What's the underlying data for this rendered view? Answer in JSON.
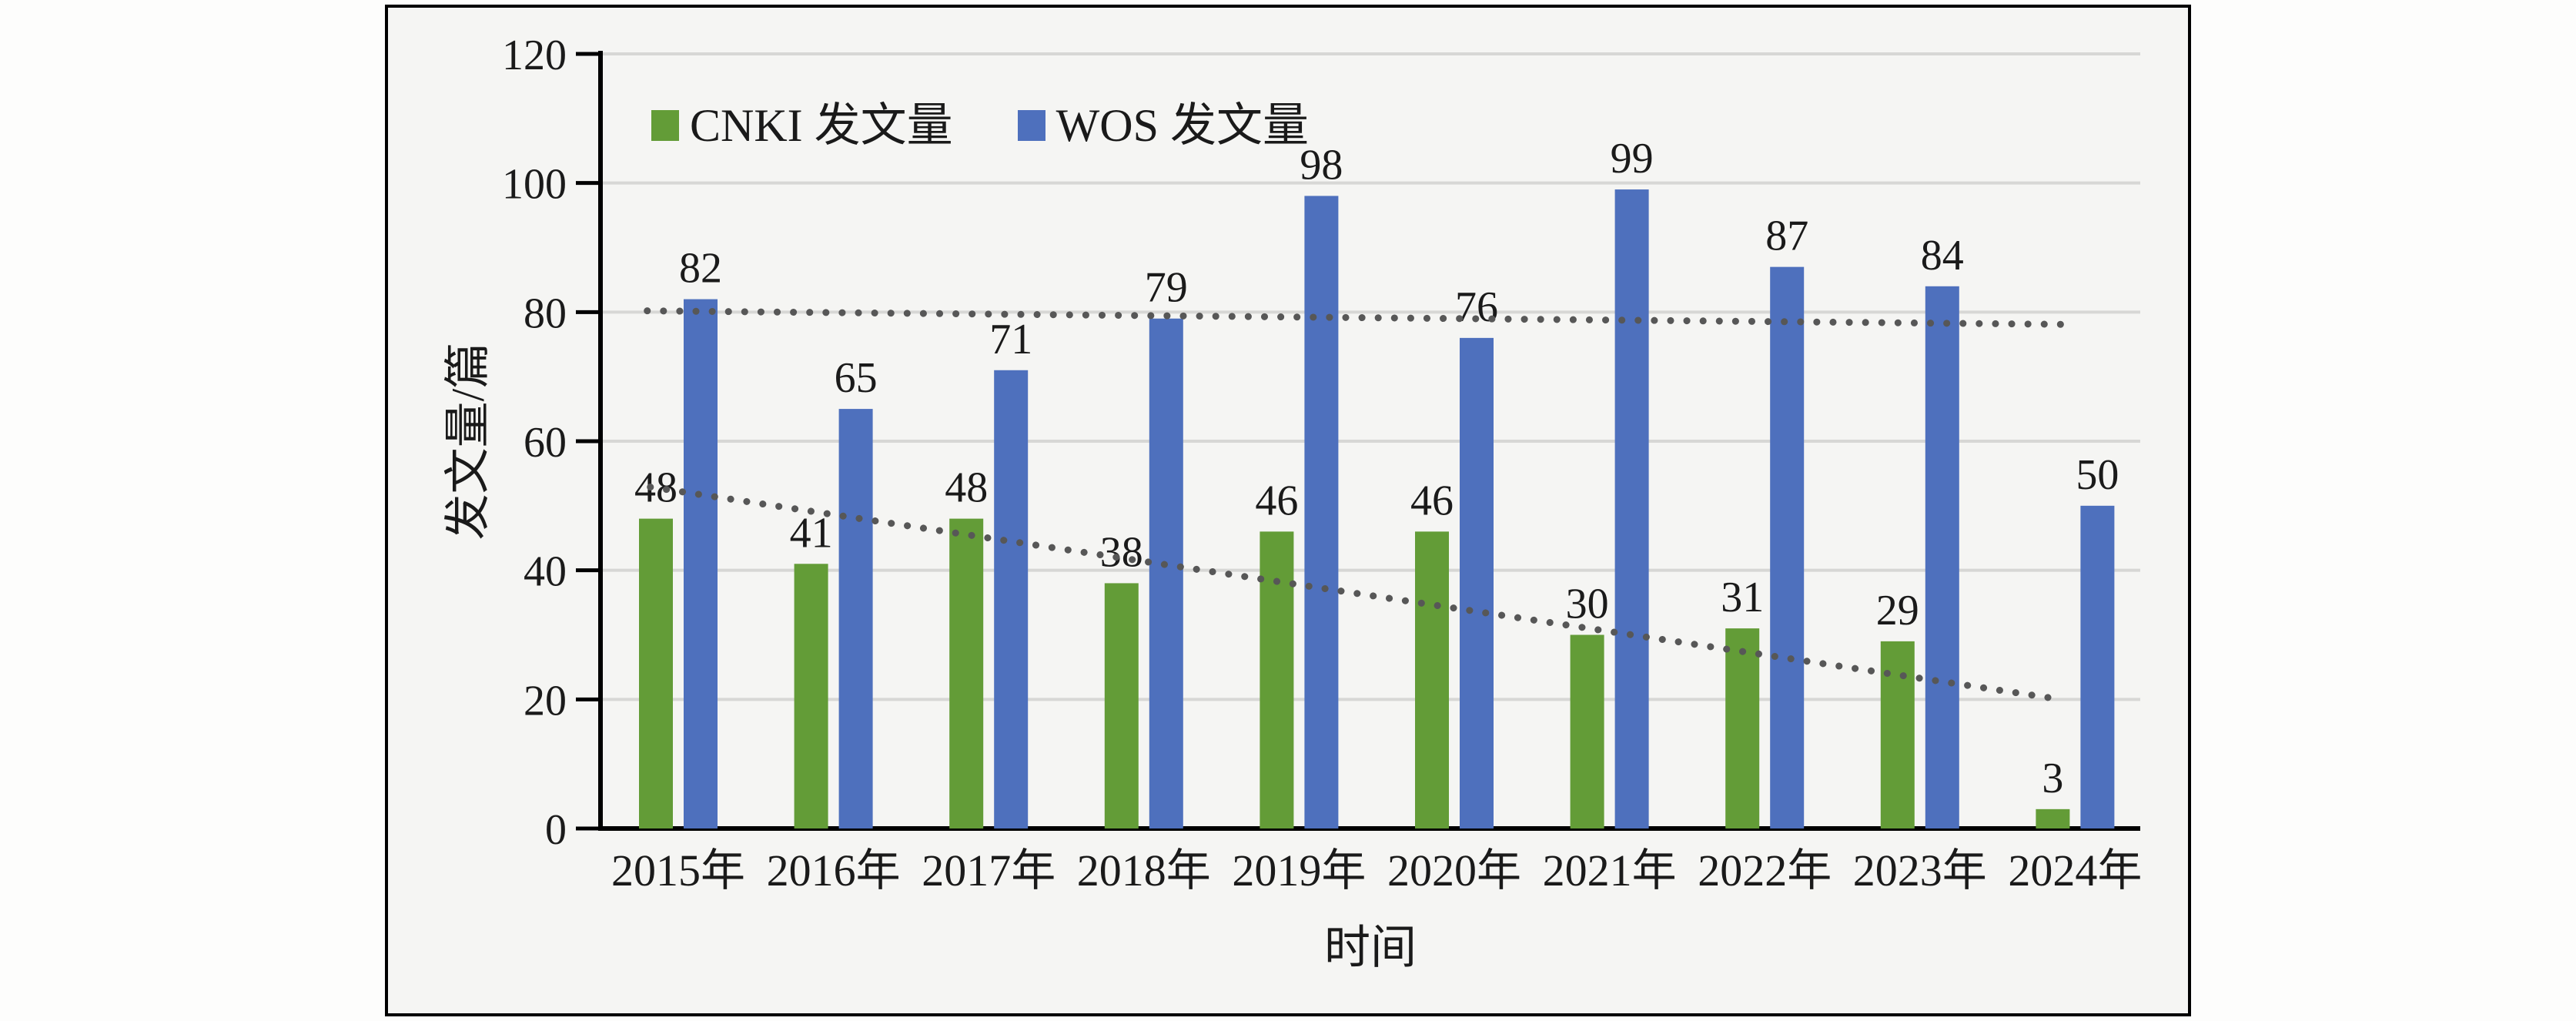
{
  "figure": {
    "frame_border_color": "#000000",
    "frame_background": "#f5f5f3",
    "page_background": "#fdfdfc",
    "text_color": "#1a1a1a",
    "gridline_color": "#d7d7d5",
    "axis_line_color": "#000000",
    "trendline_color": "#575757"
  },
  "chart_data": {
    "type": "bar",
    "title": "",
    "xlabel": "时间",
    "ylabel": "发文量/篇",
    "categories": [
      "2015年",
      "2016年",
      "2017年",
      "2018年",
      "2019年",
      "2020年",
      "2021年",
      "2022年",
      "2023年",
      "2024年"
    ],
    "series": [
      {
        "name": "CNKI 发文量",
        "color": "#639c37",
        "values": [
          48,
          41,
          48,
          38,
          46,
          46,
          30,
          31,
          29,
          3
        ]
      },
      {
        "name": "WOS 发文量",
        "color": "#4e70bd",
        "values": [
          82,
          65,
          71,
          79,
          98,
          76,
          99,
          87,
          84,
          50
        ]
      }
    ],
    "trendlines": [
      {
        "series": "CNKI 发文量",
        "style": "dotted",
        "color": "#575757",
        "x_from": -0.18,
        "value_from": 52.9,
        "x_to": 8.85,
        "value_to": 20.2
      },
      {
        "series": "WOS 发文量",
        "style": "dotted",
        "color": "#575757",
        "x_from": -0.2,
        "value_from": 80.2,
        "x_to": 8.92,
        "value_to": 78.1
      }
    ],
    "ylim": [
      0,
      120
    ],
    "yticks": [
      0,
      20,
      40,
      60,
      80,
      100,
      120
    ],
    "grid": true,
    "bar_value_labels": true,
    "legend_position": "top-left-inside"
  }
}
